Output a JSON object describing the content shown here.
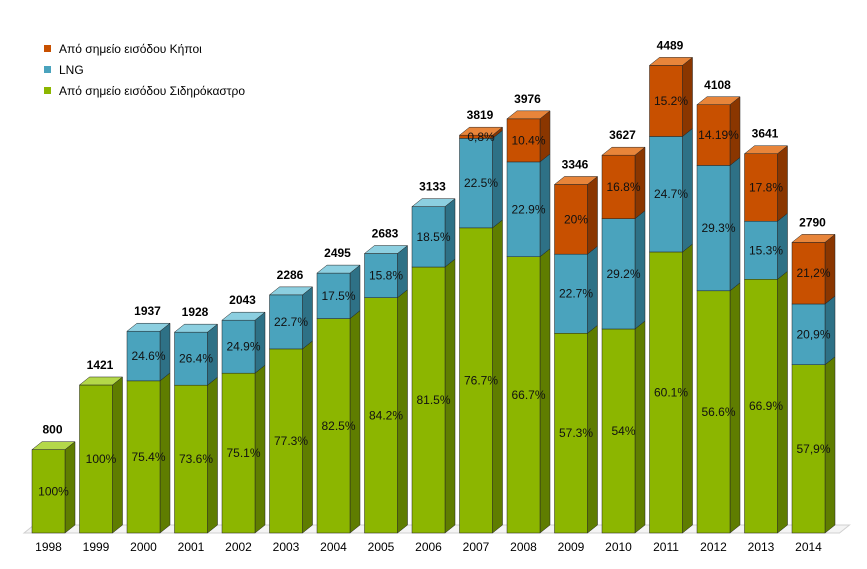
{
  "chart_data": {
    "type": "bar",
    "stacked": true,
    "style": "3d",
    "categories": [
      "1998",
      "1999",
      "2000",
      "2001",
      "2002",
      "2003",
      "2004",
      "2005",
      "2006",
      "2007",
      "2008",
      "2009",
      "2010",
      "2011",
      "2012",
      "2013",
      "2014"
    ],
    "totals": [
      "800",
      "1421",
      "1937",
      "1928",
      "2043",
      "2286",
      "2495",
      "2683",
      "3133",
      "3819",
      "3976",
      "3346",
      "3627",
      "4489",
      "4108",
      "3641",
      "2790"
    ],
    "total_values": [
      800,
      1421,
      1937,
      1928,
      2043,
      2286,
      2495,
      2683,
      3133,
      3819,
      3976,
      3346,
      3627,
      4489,
      4108,
      3641,
      2790
    ],
    "ylim": [
      0,
      4800
    ],
    "grid": false,
    "legend_position": "top-left",
    "series": [
      {
        "name": "Από σημείο εισόδου Σιδηρόκαστρο",
        "color": "#8cb600",
        "side_color": "#5f7d00",
        "top_color": "#b4d84a",
        "percent_values": [
          100,
          100,
          75.4,
          73.6,
          75.1,
          77.3,
          82.5,
          84.2,
          81.5,
          76.7,
          66.7,
          57.3,
          54,
          60.1,
          56.6,
          66.9,
          57.9
        ],
        "labels": [
          "100%",
          "100%",
          "75.4%",
          "73.6%",
          "75.1%",
          "77.3%",
          "82.5%",
          "84.2%",
          "81.5%",
          "76.7%",
          "66.7%",
          "57.3%",
          "54%",
          "60.1%",
          "56.6%",
          "66.9%",
          "57,9%"
        ]
      },
      {
        "name": "LNG",
        "color": "#4aa3bd",
        "side_color": "#2e7186",
        "top_color": "#8ccfe0",
        "percent_values": [
          0,
          0,
          24.6,
          26.4,
          24.9,
          22.7,
          17.5,
          15.8,
          18.5,
          22.5,
          22.9,
          22.7,
          29.2,
          24.7,
          29.3,
          15.3,
          20.9
        ],
        "labels": [
          "",
          "",
          "24.6%",
          "26.4%",
          "24.9%",
          "22.7%",
          "17.5%",
          "15.8%",
          "18.5%",
          "22.5%",
          "22.9%",
          "22.7%",
          "29.2%",
          "24.7%",
          "29.3%",
          "15.3%",
          "20,9%"
        ]
      },
      {
        "name": "Από σημείο εισόδου Κήποι",
        "color": "#c85000",
        "side_color": "#8a3600",
        "top_color": "#e8853a",
        "percent_values": [
          0,
          0,
          0,
          0,
          0,
          0,
          0,
          0,
          0,
          0.8,
          10.4,
          20,
          16.8,
          15.2,
          14.19,
          17.8,
          21.2
        ],
        "labels": [
          "",
          "",
          "",
          "",
          "",
          "",
          "",
          "",
          "",
          "0,8%",
          "10.4%",
          "20%",
          "16.8%",
          "15.2%",
          "14.19%",
          "17.8%",
          "21,2%"
        ]
      }
    ]
  },
  "legend": {
    "items": [
      {
        "label": "Από σημείο εισόδου Κήποι",
        "color": "#c85000"
      },
      {
        "label": "LNG",
        "color": "#4aa3bd"
      },
      {
        "label": "Από σημείο εισόδου Σιδηρόκαστρο",
        "color": "#8cb600"
      }
    ]
  }
}
